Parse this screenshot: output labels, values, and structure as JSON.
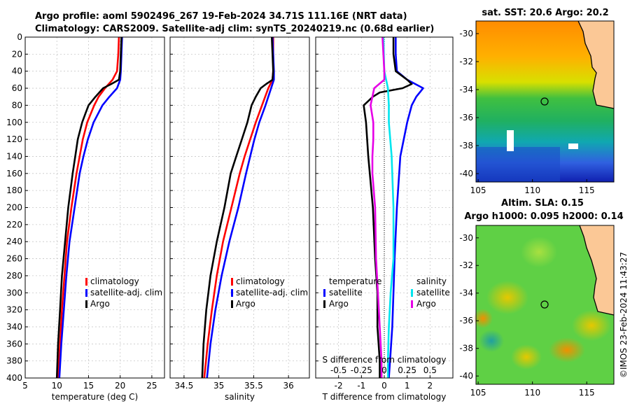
{
  "header": {
    "line1": "Argo profile: aoml 5902496_267 19-Feb-2024 34.71S 111.16E (NRT data)",
    "line2": "Climatology: CARS2009. Satellite-adj clim: synTS_20240219.nc (0.68d earlier)"
  },
  "sst_map": {
    "title": "sat. SST: 20.6 Argo: 20.2",
    "lat_ticks": [
      "-30",
      "-32",
      "-34",
      "-36",
      "-38",
      "-40"
    ],
    "lon_ticks": [
      "105",
      "110",
      "115"
    ]
  },
  "sla_map": {
    "title1": "Altim. SLA: 0.15",
    "title2": "Argo h1000: 0.095 h2000: 0.14",
    "lat_ticks": [
      "-30",
      "-32",
      "-34",
      "-36",
      "-38",
      "-40"
    ],
    "lon_ticks": [
      "105",
      "110",
      "115"
    ]
  },
  "timestamp": "©IMOS 23-Feb-2024 11:43:27",
  "colors": {
    "climatology": "#ff0000",
    "satellite": "#0000ff",
    "argo": "#000000",
    "sal_satellite": "#00e5ee",
    "sal_argo": "#e600e6"
  },
  "chart_data": [
    {
      "id": "temperature",
      "type": "line",
      "xlabel": "temperature (deg C)",
      "ylabel": "depth",
      "xlim": [
        5,
        27
      ],
      "ylim": [
        0,
        400
      ],
      "x_ticks": [
        5,
        10,
        15,
        20,
        25
      ],
      "y_ticks": [
        0,
        20,
        40,
        60,
        80,
        100,
        120,
        140,
        160,
        180,
        200,
        220,
        240,
        260,
        280,
        300,
        320,
        340,
        360,
        380,
        400
      ],
      "legend": [
        "climatology",
        "satellite-adj. clim",
        "Argo"
      ],
      "series": [
        {
          "name": "climatology",
          "depth": [
            0,
            20,
            40,
            50,
            60,
            70,
            80,
            100,
            120,
            140,
            160,
            200,
            240,
            280,
            320,
            360,
            400
          ],
          "values": [
            19.8,
            19.7,
            19.5,
            18.8,
            17.6,
            16.6,
            15.9,
            14.8,
            14.1,
            13.6,
            13.1,
            12.3,
            11.6,
            11.2,
            10.8,
            10.5,
            10.2
          ]
        },
        {
          "name": "satellite-adj. clim",
          "depth": [
            0,
            20,
            40,
            50,
            60,
            70,
            80,
            100,
            120,
            140,
            160,
            200,
            240,
            280,
            320,
            360,
            400
          ],
          "values": [
            20.3,
            20.2,
            20.1,
            20.0,
            19.5,
            18.3,
            17.2,
            15.8,
            14.9,
            14.2,
            13.6,
            12.8,
            12.0,
            11.5,
            11.1,
            10.7,
            10.4
          ]
        },
        {
          "name": "Argo",
          "depth": [
            0,
            20,
            40,
            50,
            55,
            60,
            70,
            80,
            90,
            100,
            120,
            140,
            160,
            200,
            240,
            280,
            320,
            360,
            400
          ],
          "values": [
            20.2,
            20.1,
            20.0,
            19.8,
            18.6,
            17.3,
            16.1,
            15.0,
            14.5,
            14.0,
            13.3,
            12.9,
            12.5,
            11.8,
            11.3,
            10.8,
            10.5,
            10.2,
            10.0
          ]
        }
      ]
    },
    {
      "id": "salinity",
      "type": "line",
      "xlabel": "salinity",
      "ylabel": "depth",
      "xlim": [
        34.3,
        36.3
      ],
      "ylim": [
        0,
        400
      ],
      "x_ticks": [
        34.5,
        35,
        35.5,
        36
      ],
      "legend": [
        "climatology",
        "satellite-adj. clim",
        "Argo"
      ],
      "series": [
        {
          "name": "climatology",
          "depth": [
            0,
            20,
            40,
            50,
            60,
            80,
            100,
            120,
            140,
            160,
            200,
            240,
            280,
            320,
            360,
            400
          ],
          "values": [
            35.78,
            35.78,
            35.78,
            35.77,
            35.71,
            35.62,
            35.53,
            35.45,
            35.37,
            35.3,
            35.18,
            35.06,
            34.97,
            34.9,
            34.84,
            34.79
          ]
        },
        {
          "name": "satellite-adj. clim",
          "depth": [
            0,
            20,
            40,
            50,
            60,
            80,
            100,
            120,
            140,
            160,
            200,
            240,
            280,
            320,
            360,
            400
          ],
          "values": [
            35.77,
            35.78,
            35.79,
            35.79,
            35.75,
            35.67,
            35.58,
            35.51,
            35.45,
            35.39,
            35.28,
            35.15,
            35.04,
            34.95,
            34.88,
            34.83
          ]
        },
        {
          "name": "Argo",
          "depth": [
            0,
            20,
            40,
            50,
            55,
            60,
            70,
            80,
            100,
            120,
            140,
            160,
            200,
            240,
            280,
            320,
            360,
            400
          ],
          "values": [
            35.76,
            35.77,
            35.78,
            35.77,
            35.68,
            35.6,
            35.53,
            35.47,
            35.41,
            35.33,
            35.25,
            35.17,
            35.08,
            34.97,
            34.88,
            34.82,
            34.78,
            34.76
          ]
        }
      ]
    },
    {
      "id": "difference",
      "type": "line",
      "xlabel": "T difference from climatology",
      "x2label": "S difference from climatology",
      "ylabel": "depth",
      "xlim": [
        -3,
        3
      ],
      "ylim": [
        0,
        400
      ],
      "x_ticks": [
        -2,
        -1,
        0,
        1,
        2
      ],
      "x2_ticks": [
        "-0.5",
        "-0.25",
        "0",
        "0.25",
        "0.5"
      ],
      "legend": {
        "temperature_title": "temperature",
        "salinity_title": "salinity",
        "entries": [
          "satellite",
          "Argo",
          "satellite",
          "Argo"
        ]
      },
      "series": [
        {
          "name": "temperature satellite",
          "depth": [
            0,
            20,
            40,
            50,
            60,
            70,
            80,
            100,
            140,
            200,
            260,
            300,
            340,
            380,
            400
          ],
          "values": [
            0.5,
            0.5,
            0.55,
            1.0,
            1.7,
            1.4,
            1.2,
            1.0,
            0.7,
            0.55,
            0.45,
            0.4,
            0.35,
            0.25,
            0.2
          ]
        },
        {
          "name": "temperature Argo",
          "depth": [
            0,
            20,
            40,
            50,
            55,
            60,
            65,
            70,
            80,
            100,
            140,
            200,
            260,
            300,
            340,
            380,
            400
          ],
          "values": [
            0.4,
            0.4,
            0.5,
            1.0,
            1.2,
            0.8,
            -0.2,
            -0.5,
            -0.9,
            -0.8,
            -0.7,
            -0.5,
            -0.4,
            -0.3,
            -0.3,
            -0.2,
            -0.2
          ]
        },
        {
          "name": "salinity satellite",
          "depth": [
            0,
            40,
            60,
            80,
            100,
            140,
            200,
            260,
            300,
            340,
            380,
            400
          ],
          "values": [
            -0.01,
            0.0,
            0.04,
            0.05,
            0.05,
            0.08,
            0.1,
            0.1,
            0.07,
            0.05,
            0.04,
            0.04
          ]
        },
        {
          "name": "salinity Argo",
          "depth": [
            0,
            20,
            40,
            50,
            60,
            80,
            100,
            120,
            140,
            160,
            200,
            260,
            300,
            340,
            380,
            400
          ],
          "values": [
            -0.02,
            -0.01,
            0.0,
            0.0,
            -0.11,
            -0.15,
            -0.12,
            -0.12,
            -0.13,
            -0.13,
            -0.1,
            -0.09,
            -0.07,
            -0.05,
            -0.03,
            -0.03
          ]
        }
      ]
    }
  ]
}
